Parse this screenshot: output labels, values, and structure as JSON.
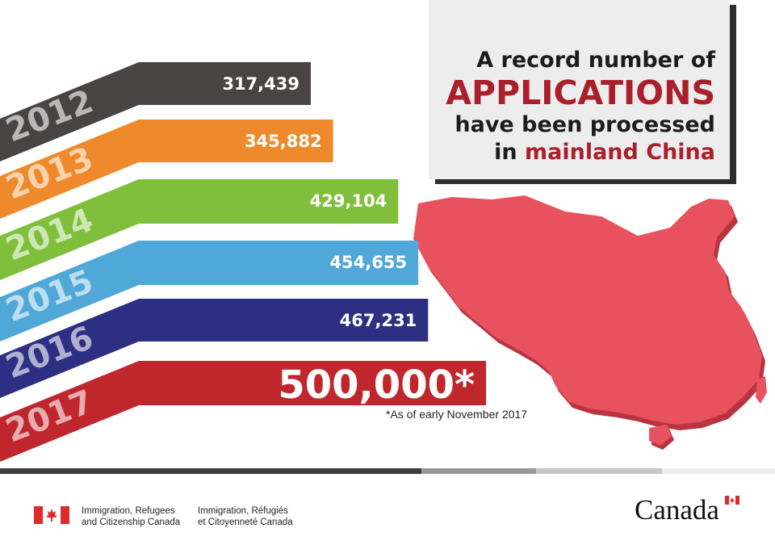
{
  "chart_data": {
    "type": "bar",
    "categories": [
      "2012",
      "2013",
      "2014",
      "2015",
      "2016",
      "2017"
    ],
    "values": [
      317439,
      345882,
      429104,
      454655,
      467231,
      500000
    ],
    "value_labels": [
      "317,439",
      "345,882",
      "429,104",
      "454,655",
      "467,231",
      "500,000*"
    ],
    "xlabel": "",
    "ylabel": "",
    "footnote": "*As of early November 2017"
  },
  "title": {
    "line1": "A record number of",
    "line2": "APPLICATIONS",
    "line3": "have been processed",
    "line4_prefix": "in",
    "line4_accent": "mainland China"
  },
  "colors": {
    "2012": "#4a4344",
    "2013": "#ef8a2c",
    "2014": "#7fbf3c",
    "2015": "#4fa8d8",
    "2016": "#2d3082",
    "2017": "#c0272d",
    "map": "#e8525f",
    "accent": "#a91f2b"
  },
  "footer": {
    "english_line1": "Immigration, Refugees",
    "english_line2": "and Citizenship Canada",
    "french_line1": "Immigration, Réfugiés",
    "french_line2": "et Citoyenneté Canada",
    "wordmark": "Canada",
    "flag_icon": "canada-flag-icon"
  }
}
